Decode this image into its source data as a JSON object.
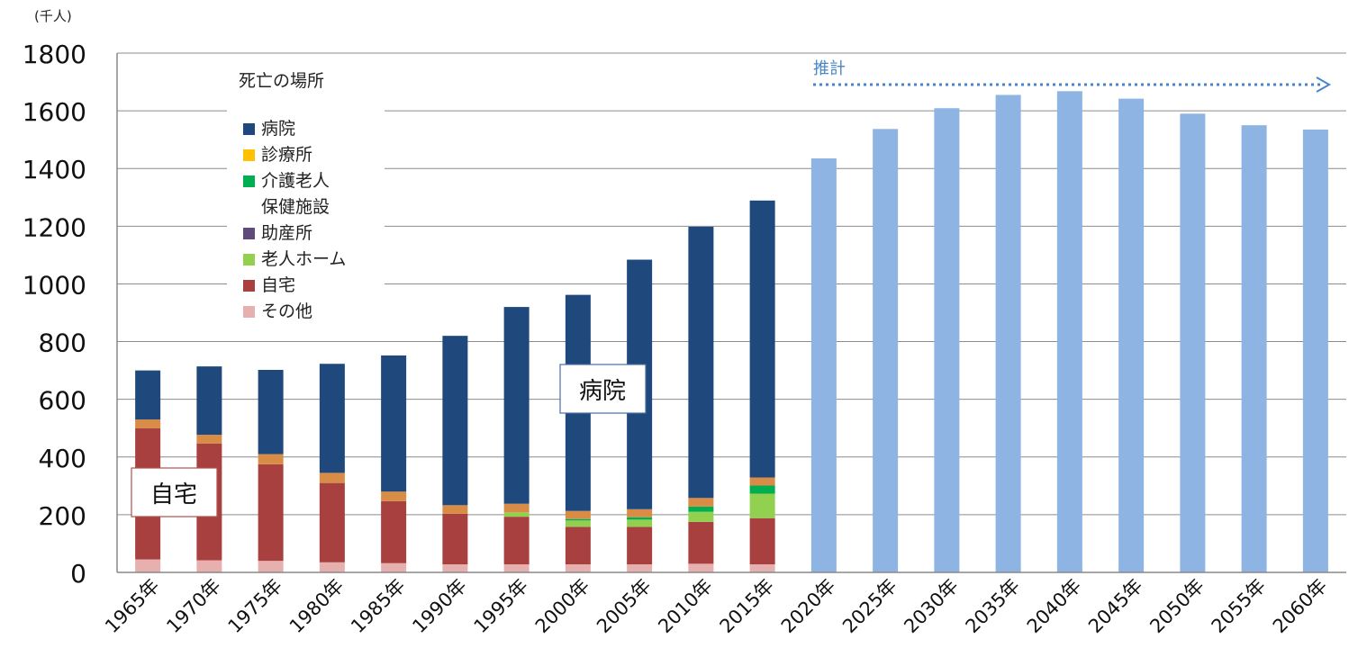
{
  "unit_label": "(千人)",
  "legend": {
    "title": "死亡の場所",
    "items": [
      {
        "label": "病院",
        "color": "#1f497d"
      },
      {
        "label": "診療所",
        "color": "#ffc000"
      },
      {
        "label": "介護老人",
        "label2": "保健施設",
        "color": "#00b050"
      },
      {
        "label": "助産所",
        "color": "#604a7b"
      },
      {
        "label": "老人ホーム",
        "color": "#92d050"
      },
      {
        "label": "自宅",
        "color": "#a7403e"
      },
      {
        "label": "その他",
        "color": "#e6b0ae"
      }
    ]
  },
  "projection": {
    "label": "推計",
    "color": "#4a86c5"
  },
  "callouts": {
    "home": "自宅",
    "hospital": "病院"
  },
  "chart_data": {
    "type": "bar",
    "stacked": true,
    "ylim": [
      0,
      1800
    ],
    "yticks": [
      "0",
      "200",
      "400",
      "600",
      "800",
      "1000",
      "1200",
      "1400",
      "1600",
      "1800"
    ],
    "grid": true,
    "categories": [
      "1965年",
      "1970年",
      "1975年",
      "1980年",
      "1985年",
      "1990年",
      "1995年",
      "2000年",
      "2005年",
      "2010年",
      "2015年",
      "2020年",
      "2025年",
      "2030年",
      "2035年",
      "2040年",
      "2045年",
      "2050年",
      "2055年",
      "2060年"
    ],
    "series": [
      {
        "name": "その他",
        "color": "#e6b0ae",
        "values": [
          45,
          42,
          40,
          35,
          32,
          28,
          28,
          28,
          28,
          30,
          28,
          0,
          0,
          0,
          0,
          0,
          0,
          0,
          0,
          0
        ]
      },
      {
        "name": "自宅",
        "color": "#a7403e",
        "values": [
          455,
          405,
          335,
          275,
          215,
          175,
          165,
          130,
          130,
          145,
          160,
          0,
          0,
          0,
          0,
          0,
          0,
          0,
          0,
          0
        ]
      },
      {
        "name": "老人ホーム",
        "color": "#92d050",
        "values": [
          0,
          0,
          0,
          0,
          0,
          0,
          15,
          22,
          25,
          35,
          85,
          0,
          0,
          0,
          0,
          0,
          0,
          0,
          0,
          0
        ]
      },
      {
        "name": "助産所",
        "color": "#604a7b",
        "values": [
          0,
          0,
          0,
          0,
          0,
          0,
          0,
          0,
          0,
          0,
          0,
          0,
          0,
          0,
          0,
          0,
          0,
          0,
          0,
          0
        ]
      },
      {
        "name": "介護老人保健施設",
        "color": "#00b050",
        "values": [
          0,
          0,
          0,
          0,
          0,
          0,
          0,
          5,
          8,
          18,
          28,
          0,
          0,
          0,
          0,
          0,
          0,
          0,
          0,
          0
        ]
      },
      {
        "name": "診療所",
        "color": "#d98c46",
        "values": [
          30,
          30,
          35,
          35,
          33,
          30,
          30,
          28,
          28,
          30,
          28,
          0,
          0,
          0,
          0,
          0,
          0,
          0,
          0,
          0
        ]
      },
      {
        "name": "病院",
        "color": "#1f497d",
        "values": [
          170,
          237,
          292,
          378,
          472,
          587,
          682,
          749,
          865,
          940,
          960,
          0,
          0,
          0,
          0,
          0,
          0,
          0,
          0,
          0
        ]
      },
      {
        "name": "推計",
        "color": "#8eb4e3",
        "values": [
          0,
          0,
          0,
          0,
          0,
          0,
          0,
          0,
          0,
          0,
          0,
          1435,
          1537,
          1609,
          1655,
          1668,
          1642,
          1590,
          1550,
          1535
        ]
      }
    ]
  }
}
